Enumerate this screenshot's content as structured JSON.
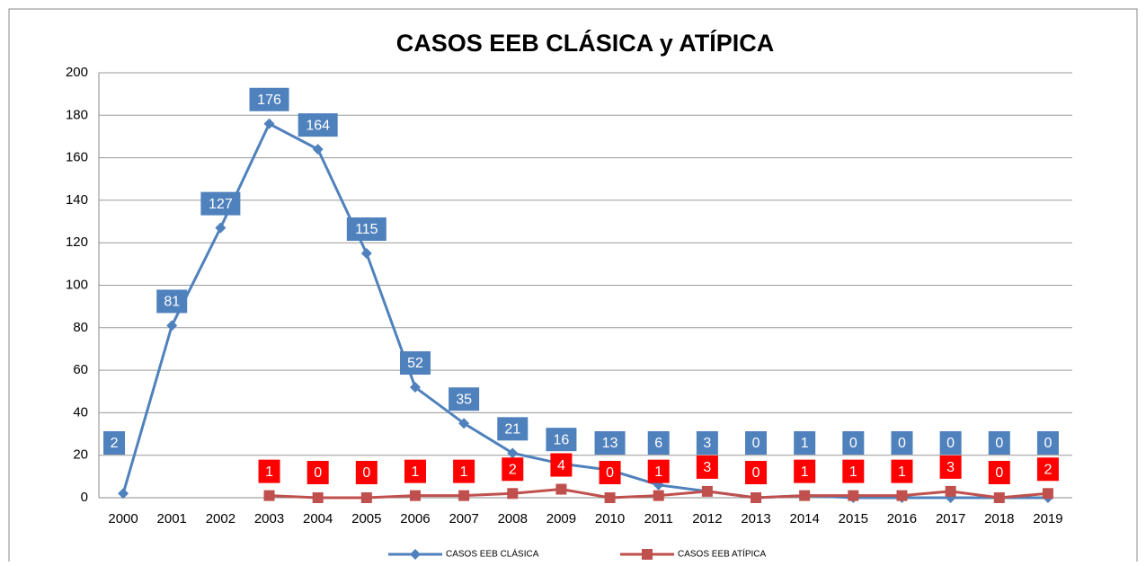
{
  "chart_data": {
    "type": "line",
    "title": "CASOS EEB CLÁSICA y ATÍPICA",
    "categories": [
      "2000",
      "2001",
      "2002",
      "2003",
      "2004",
      "2005",
      "2006",
      "2007",
      "2008",
      "2009",
      "2010",
      "2011",
      "2012",
      "2013",
      "2014",
      "2015",
      "2016",
      "2017",
      "2018",
      "2019"
    ],
    "series": [
      {
        "name": "CASOS EEB CLÁSICA",
        "color": "#4f81bd",
        "marker": "diamond",
        "values": [
          2,
          81,
          127,
          176,
          164,
          115,
          52,
          35,
          21,
          16,
          13,
          6,
          3,
          0,
          1,
          0,
          0,
          0,
          0,
          0
        ]
      },
      {
        "name": "CASOS EEB ATÍPICA",
        "color": "#c0504d",
        "label_color": "#ff0000",
        "marker": "square",
        "values": [
          null,
          null,
          null,
          1,
          0,
          0,
          1,
          1,
          2,
          4,
          0,
          1,
          3,
          0,
          1,
          1,
          1,
          3,
          0,
          2
        ]
      }
    ],
    "ylim": [
      0,
      200
    ],
    "yticks": [
      0,
      20,
      40,
      60,
      80,
      100,
      120,
      140,
      160,
      180,
      200
    ],
    "grid": true,
    "legend": "bottom"
  }
}
